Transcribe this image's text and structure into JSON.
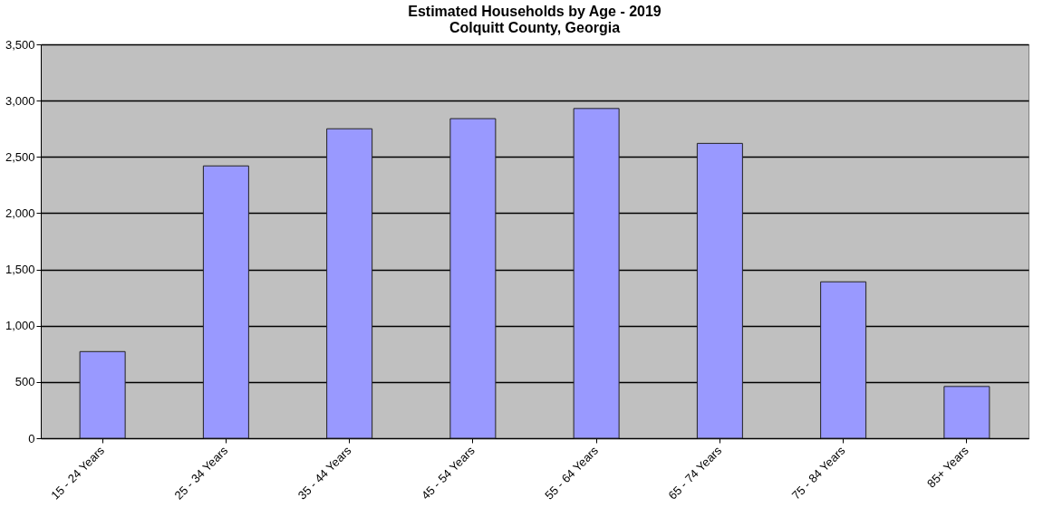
{
  "chart_data": {
    "type": "bar",
    "title": "Estimated Households by Age - 2019",
    "subtitle": "Colquitt County, Georgia",
    "categories": [
      "15 - 24 Years",
      "25 - 34 Years",
      "35 - 44 Years",
      "45 - 54 Years",
      "55 - 64 Years",
      "65 - 74 Years",
      "75 - 84 Years",
      "85+ Years"
    ],
    "values": [
      770,
      2420,
      2750,
      2840,
      2930,
      2620,
      1390,
      460
    ],
    "color": "#9999ff",
    "ylim": [
      0,
      3500
    ],
    "yticks": [
      {
        "value": 0,
        "label": "0"
      },
      {
        "value": 500,
        "label": "500"
      },
      {
        "value": 1000,
        "label": "1,000"
      },
      {
        "value": 1500,
        "label": "1,500"
      },
      {
        "value": 2000,
        "label": "2,000"
      },
      {
        "value": 2500,
        "label": "2,500"
      },
      {
        "value": 3000,
        "label": "3,000"
      },
      {
        "value": 3500,
        "label": "3,500"
      }
    ],
    "grid": "y"
  }
}
